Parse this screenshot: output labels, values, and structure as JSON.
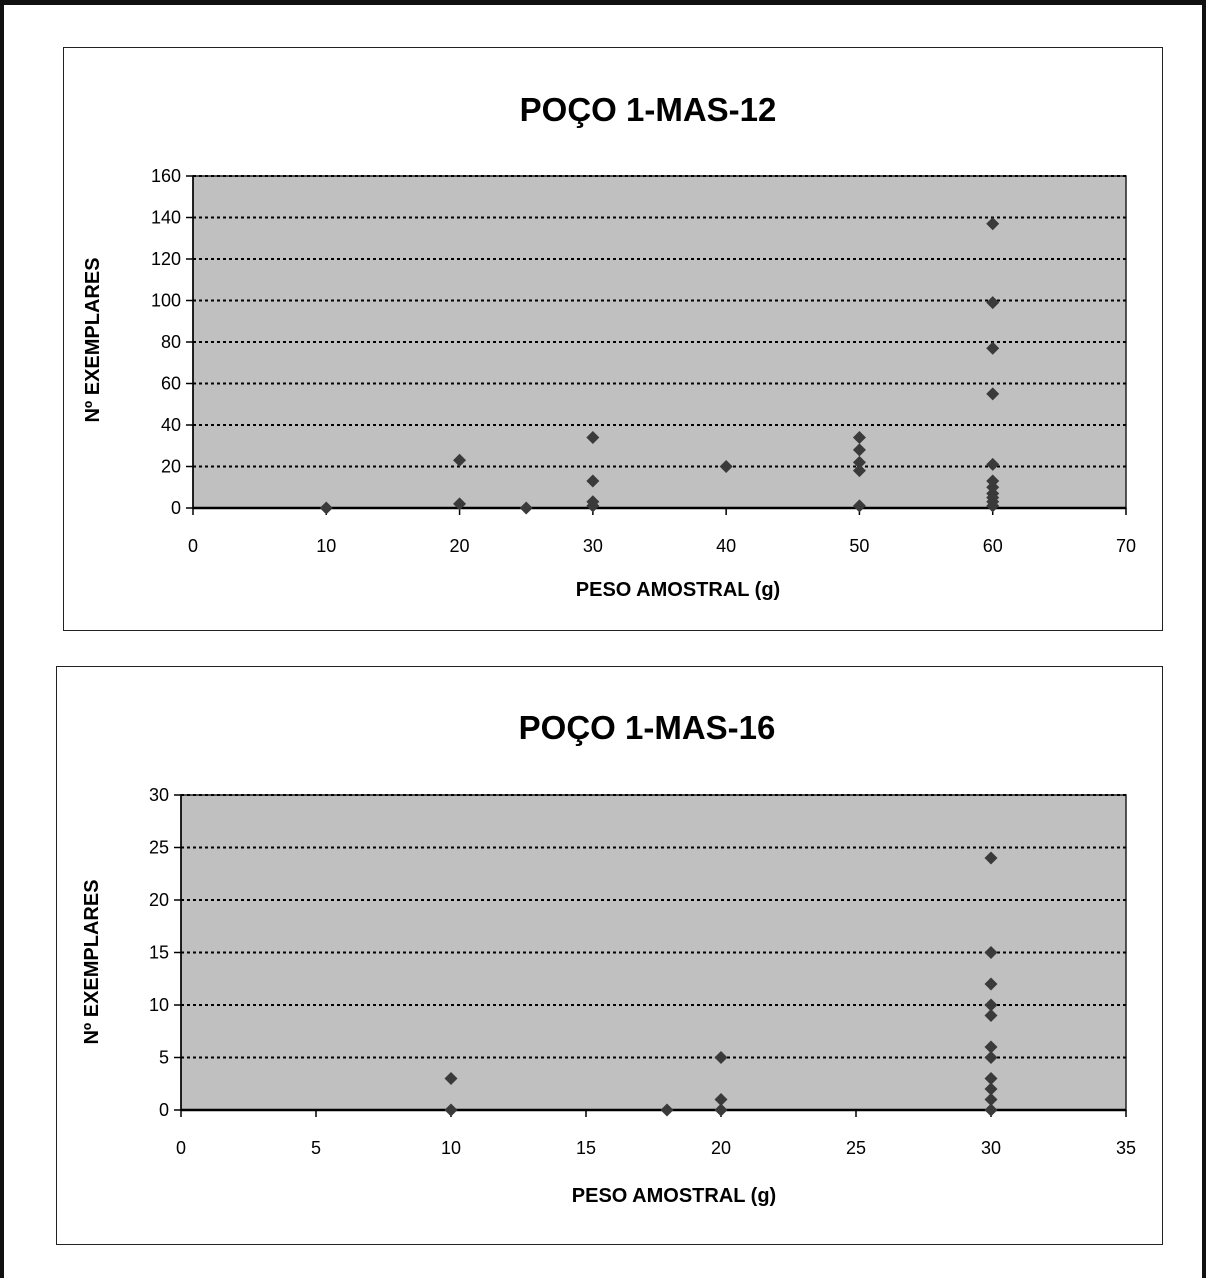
{
  "chart_data": [
    {
      "type": "scatter",
      "title": "POÇO 1-MAS-12",
      "xlabel": "PESO AMOSTRAL (g)",
      "ylabel": "Nº EXEMPLARES",
      "xlim": [
        0,
        70
      ],
      "ylim": [
        0,
        160
      ],
      "xticks": [
        0,
        10,
        20,
        30,
        40,
        50,
        60,
        70
      ],
      "yticks": [
        0,
        20,
        40,
        60,
        80,
        100,
        120,
        140,
        160
      ],
      "grid": "horizontal dotted",
      "marker": "diamond",
      "colors": {
        "plot_bg": "#c0c0c0",
        "marker": "#3a3a3a",
        "grid": "#000000"
      },
      "points": [
        {
          "x": 10,
          "y": 0
        },
        {
          "x": 20,
          "y": 23
        },
        {
          "x": 20,
          "y": 2
        },
        {
          "x": 25,
          "y": 0
        },
        {
          "x": 30,
          "y": 34
        },
        {
          "x": 30,
          "y": 13
        },
        {
          "x": 30,
          "y": 3
        },
        {
          "x": 30,
          "y": 1
        },
        {
          "x": 40,
          "y": 20
        },
        {
          "x": 50,
          "y": 34
        },
        {
          "x": 50,
          "y": 28
        },
        {
          "x": 50,
          "y": 22
        },
        {
          "x": 50,
          "y": 18
        },
        {
          "x": 50,
          "y": 1
        },
        {
          "x": 60,
          "y": 137
        },
        {
          "x": 60,
          "y": 99
        },
        {
          "x": 60,
          "y": 77
        },
        {
          "x": 60,
          "y": 55
        },
        {
          "x": 60,
          "y": 21
        },
        {
          "x": 60,
          "y": 13
        },
        {
          "x": 60,
          "y": 10
        },
        {
          "x": 60,
          "y": 7
        },
        {
          "x": 60,
          "y": 5
        },
        {
          "x": 60,
          "y": 3
        },
        {
          "x": 60,
          "y": 1
        }
      ]
    },
    {
      "type": "scatter",
      "title": "POÇO 1-MAS-16",
      "xlabel": "PESO AMOSTRAL (g)",
      "ylabel": "Nº EXEMPLARES",
      "xlim": [
        0,
        35
      ],
      "ylim": [
        0,
        30
      ],
      "xticks": [
        0,
        5,
        10,
        15,
        20,
        25,
        30,
        35
      ],
      "yticks": [
        0,
        5,
        10,
        15,
        20,
        25,
        30
      ],
      "grid": "horizontal dotted",
      "marker": "diamond",
      "colors": {
        "plot_bg": "#c0c0c0",
        "marker": "#3a3a3a",
        "grid": "#000000"
      },
      "points": [
        {
          "x": 10,
          "y": 3
        },
        {
          "x": 10,
          "y": 0
        },
        {
          "x": 18,
          "y": 0
        },
        {
          "x": 20,
          "y": 5
        },
        {
          "x": 20,
          "y": 1
        },
        {
          "x": 20,
          "y": 0
        },
        {
          "x": 30,
          "y": 24
        },
        {
          "x": 30,
          "y": 15
        },
        {
          "x": 30,
          "y": 12
        },
        {
          "x": 30,
          "y": 10
        },
        {
          "x": 30,
          "y": 9
        },
        {
          "x": 30,
          "y": 6
        },
        {
          "x": 30,
          "y": 5
        },
        {
          "x": 30,
          "y": 3
        },
        {
          "x": 30,
          "y": 2
        },
        {
          "x": 30,
          "y": 1
        },
        {
          "x": 30,
          "y": 0
        }
      ]
    }
  ]
}
